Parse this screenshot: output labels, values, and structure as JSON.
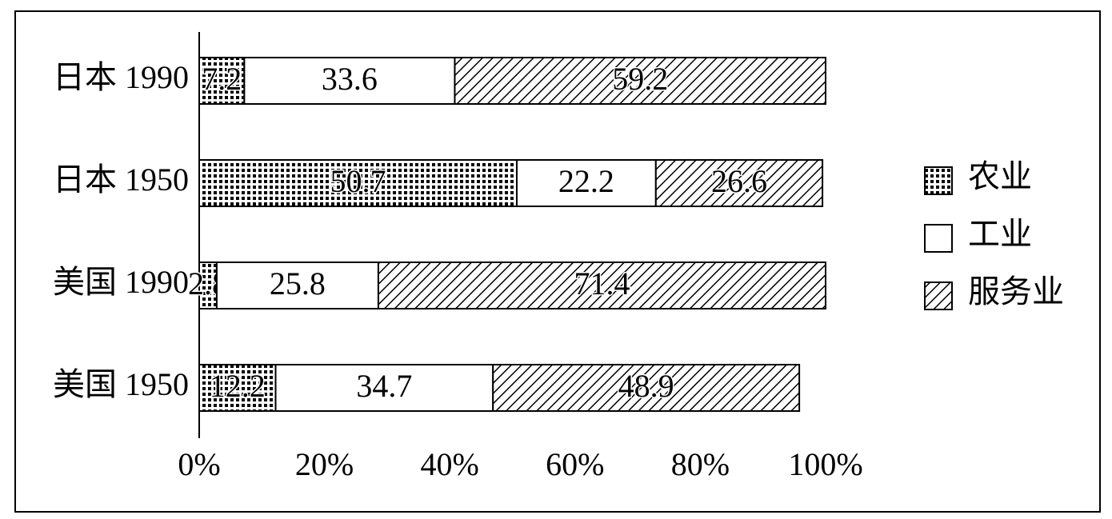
{
  "chart_data": {
    "type": "stacked-bar-horizontal",
    "categories": [
      "日本 1990",
      "日本 1950",
      "美国 1990",
      "美国 1950"
    ],
    "series": [
      {
        "name": "农业",
        "pattern": "dots",
        "color": "#000000",
        "values": [
          7.2,
          50.7,
          2.8,
          12.2
        ]
      },
      {
        "name": "工业",
        "pattern": "none",
        "color": "#000000",
        "values": [
          33.6,
          22.2,
          25.8,
          34.7
        ]
      },
      {
        "name": "服务业",
        "pattern": "hatch",
        "color": "#000000",
        "values": [
          59.2,
          26.6,
          71.4,
          48.9
        ]
      }
    ],
    "xlim": [
      0,
      100
    ],
    "xticks": [
      {
        "value": 0,
        "label": "0%"
      },
      {
        "value": 20,
        "label": "20%"
      },
      {
        "value": 40,
        "label": "40%"
      },
      {
        "value": 60,
        "label": "60%"
      },
      {
        "value": 80,
        "label": "80%"
      },
      {
        "value": 100,
        "label": "100%"
      }
    ],
    "legend": "right"
  }
}
